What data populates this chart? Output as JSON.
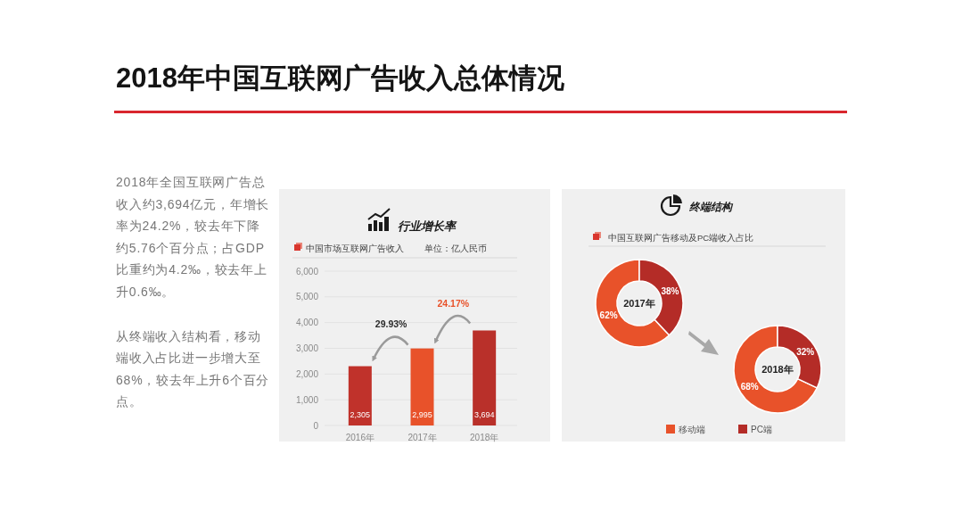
{
  "chart_data": [
    {
      "type": "other",
      "title": "2018年中国互联网广告收入总体情况",
      "annotations": [
        "2018年全国互联网广告总收入约3,694亿元，年增长率为24.2%，较去年下降约5.76个百分点；占GDP比重约为4.2‰，较去年上升0.6‰。",
        "从终端收入结构看，移动端收入占比进一步增大至68%，较去年上升6个百分点。"
      ]
    },
    {
      "type": "bar",
      "title": "行业增长率",
      "subtitle": "中国市场互联网广告收入",
      "ylabel": "单位：亿人民币",
      "categories": [
        "2016年",
        "2017年",
        "2018年"
      ],
      "values": [
        2305,
        2995,
        3694
      ],
      "colors": [
        "#c0322b",
        "#e8522a",
        "#b9302a"
      ],
      "value_labels": [
        "2,305",
        "2,995",
        "3,694"
      ],
      "ylim": [
        0,
        6000
      ],
      "yticks": [
        0,
        {
          "value": 1000,
          "label": "1,000"
        },
        {
          "value": 2000,
          "label": "2,000"
        },
        {
          "value": 3000,
          "label": "3,000"
        },
        {
          "value": 4000,
          "label": "4,000"
        },
        {
          "value": 5000,
          "label": "5,000"
        },
        {
          "value": 6000,
          "label": "6,000"
        }
      ],
      "grid": "y",
      "annotations": [
        "29.93%",
        "24.17%"
      ]
    },
    {
      "type": "donut",
      "title": "终端结构",
      "subtitle": "中国互联网广告移动及PC端收入占比",
      "categories": [
        "移动端",
        "PC端"
      ],
      "values": [
        62,
        38
      ],
      "colors": [
        "#e8522a",
        "#b42c27"
      ],
      "value_labels": [
        "62%",
        "38%"
      ],
      "annotations": [
        "2017年"
      ],
      "legend": "bottom"
    },
    {
      "type": "donut",
      "categories": [
        null,
        null
      ],
      "values": [
        68,
        32
      ],
      "colors": [
        "#e8522a",
        "#b42c27"
      ],
      "value_labels": [
        "68%",
        "32%"
      ],
      "annotations": [
        "2018年"
      ]
    }
  ]
}
